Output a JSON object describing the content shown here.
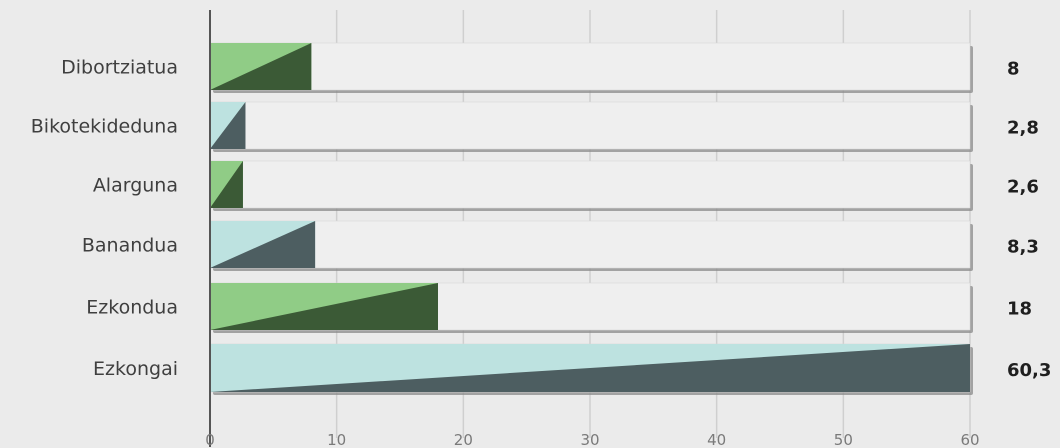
{
  "chart_data": {
    "type": "bar",
    "orientation": "horizontal",
    "categories": [
      "Dibortziatua",
      "Bikotekideduna",
      "Alarguna",
      "Banandua",
      "Ezkondua",
      "Ezkongai"
    ],
    "values": [
      8,
      2.8,
      2.6,
      8.3,
      18,
      60.3
    ],
    "value_labels": [
      "8",
      "2,8",
      "2,6",
      "8,3",
      "18",
      "60,3"
    ],
    "xlim": [
      0,
      60
    ],
    "xticks": [
      0,
      10,
      20,
      30,
      40,
      50,
      60
    ],
    "grid": true,
    "title": "",
    "xlabel": "",
    "ylabel": "",
    "colors": {
      "green_light": "#90cc86",
      "green_dark": "#3b5a36",
      "teal_light": "#bde2e0",
      "teal_dark": "#4d5e61",
      "track": "#efefef",
      "shadow": "#8a8a8a",
      "grid": "#cfcfcf",
      "axis": "#555555"
    },
    "bar_colors": [
      "green",
      "teal",
      "green",
      "teal",
      "green",
      "teal"
    ]
  }
}
